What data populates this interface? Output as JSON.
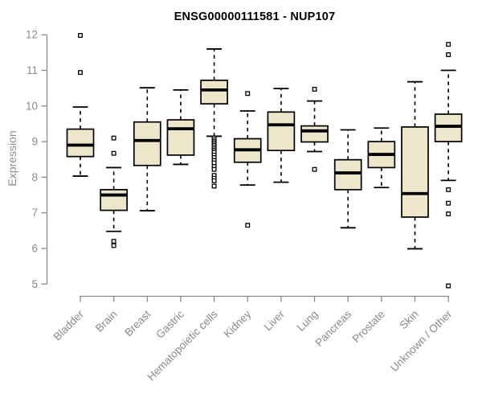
{
  "title": "ENSG00000111581 - NUP107",
  "chart_data": {
    "type": "boxplot",
    "title": "ENSG00000111581 - NUP107",
    "xlabel": "",
    "ylabel": "Expression",
    "ylim": [
      5,
      12
    ],
    "yticks": [
      5,
      6,
      7,
      8,
      9,
      10,
      11,
      12
    ],
    "grid": false,
    "legend": "none",
    "categories": [
      "Bladder",
      "Brain",
      "Breast",
      "Gastric",
      "Hematopoietic cells",
      "Kidney",
      "Liver",
      "Lung",
      "Pancreas",
      "Prostate",
      "Skin",
      "Unknown / Other"
    ],
    "series": [
      {
        "category": "Bladder",
        "whisker_low": 8.03,
        "q1": 8.58,
        "median": 8.9,
        "q3": 9.35,
        "whisker_high": 9.97,
        "outliers": [
          11.98,
          10.94
        ]
      },
      {
        "category": "Brain",
        "whisker_low": 6.48,
        "q1": 7.07,
        "median": 7.5,
        "q3": 7.65,
        "whisker_high": 8.27,
        "outliers": [
          9.1,
          8.67,
          6.2,
          6.08
        ]
      },
      {
        "category": "Breast",
        "whisker_low": 7.06,
        "q1": 8.33,
        "median": 9.03,
        "q3": 9.55,
        "whisker_high": 10.51,
        "outliers": []
      },
      {
        "category": "Gastric",
        "whisker_low": 8.36,
        "q1": 8.62,
        "median": 9.36,
        "q3": 9.61,
        "whisker_high": 10.45,
        "outliers": []
      },
      {
        "category": "Hematopoietic cells",
        "whisker_low": 9.15,
        "q1": 10.06,
        "median": 10.45,
        "q3": 10.72,
        "whisker_high": 11.6,
        "outliers": [
          9.1,
          9.05,
          9.0,
          8.95,
          8.9,
          8.85,
          8.8,
          8.75,
          8.7,
          8.62,
          8.55,
          8.47,
          8.4,
          8.3,
          8.22,
          8.05,
          7.97,
          7.9,
          7.75
        ]
      },
      {
        "category": "Kidney",
        "whisker_low": 7.78,
        "q1": 8.42,
        "median": 8.77,
        "q3": 9.08,
        "whisker_high": 9.86,
        "outliers": [
          10.35,
          6.65
        ]
      },
      {
        "category": "Liver",
        "whisker_low": 7.86,
        "q1": 8.75,
        "median": 9.47,
        "q3": 9.83,
        "whisker_high": 10.49,
        "outliers": []
      },
      {
        "category": "Lung",
        "whisker_low": 8.72,
        "q1": 8.99,
        "median": 9.3,
        "q3": 9.44,
        "whisker_high": 10.14,
        "outliers": [
          10.47,
          8.22
        ]
      },
      {
        "category": "Pancreas",
        "whisker_low": 6.58,
        "q1": 7.65,
        "median": 8.12,
        "q3": 8.49,
        "whisker_high": 9.33,
        "outliers": []
      },
      {
        "category": "Prostate",
        "whisker_low": 7.71,
        "q1": 8.27,
        "median": 8.64,
        "q3": 9.0,
        "whisker_high": 9.38,
        "outliers": []
      },
      {
        "category": "Skin",
        "whisker_low": 5.99,
        "q1": 6.88,
        "median": 7.54,
        "q3": 9.41,
        "whisker_high": 10.68,
        "outliers": []
      },
      {
        "category": "Unknown / Other",
        "whisker_low": 7.91,
        "q1": 9.0,
        "median": 9.43,
        "q3": 9.77,
        "whisker_high": 11.0,
        "outliers": [
          11.73,
          11.44,
          7.65,
          7.27,
          6.97,
          4.95
        ]
      }
    ],
    "colors": {
      "box_fill": "#EDE6CB",
      "box_stroke": "#000000",
      "median": "#000000",
      "whisker": "#000000",
      "outlier_stroke": "#000000",
      "axis": "#8A8A8A",
      "tick_label": "#8A8A8A",
      "title": "#000000",
      "background": "#FFFFFF"
    }
  }
}
